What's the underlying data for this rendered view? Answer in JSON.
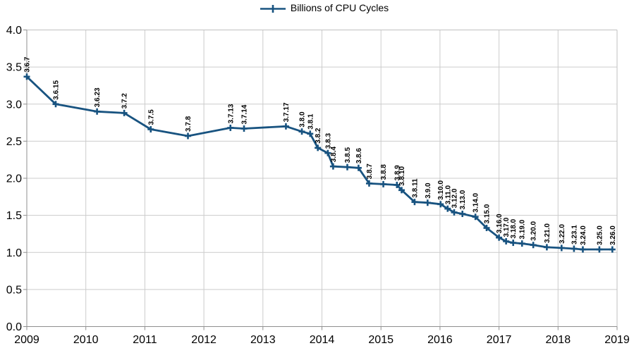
{
  "legend": {
    "label": "Billions of CPU Cycles"
  },
  "colors": {
    "line": "#185380",
    "marker": "#185380",
    "grid": "#cccccc",
    "border": "#c0c0c0",
    "axis": "#8f8f8f",
    "text": "#000000",
    "background": "#ffffff"
  },
  "chart_data": {
    "type": "line",
    "title": "",
    "xlabel": "",
    "ylabel": "",
    "legend_entries": [
      "Billions of CPU Cycles"
    ],
    "legend_position": "top-center",
    "grid": true,
    "marker_style": "plus",
    "xlim": [
      2009,
      2019
    ],
    "ylim": [
      0.0,
      4.0
    ],
    "x_ticks": [
      2009,
      2010,
      2011,
      2012,
      2013,
      2014,
      2015,
      2016,
      2017,
      2018,
      2019
    ],
    "x_tick_labels": [
      "2009",
      "2010",
      "2011",
      "2012",
      "2013",
      "2014",
      "2015",
      "2016",
      "2017",
      "2018",
      "2019"
    ],
    "y_ticks": [
      0.0,
      0.5,
      1.0,
      1.5,
      2.0,
      2.5,
      3.0,
      3.5,
      4.0
    ],
    "y_tick_labels": [
      "0.0",
      "0.5",
      "1.0",
      "1.5",
      "2.0",
      "2.5",
      "3.0",
      "3.5",
      "4.0"
    ],
    "series": [
      {
        "name": "Billions of CPU Cycles",
        "points": [
          {
            "label": "3.6.7",
            "x": 2009.0,
            "y": 3.37
          },
          {
            "label": "3.6.15",
            "x": 2009.49,
            "y": 3.0
          },
          {
            "label": "3.6.23",
            "x": 2010.19,
            "y": 2.9
          },
          {
            "label": "3.7.2",
            "x": 2010.65,
            "y": 2.88
          },
          {
            "label": "3.7.5",
            "x": 2011.1,
            "y": 2.66
          },
          {
            "label": "3.7.8",
            "x": 2011.73,
            "y": 2.57
          },
          {
            "label": "3.7.13",
            "x": 2012.45,
            "y": 2.68
          },
          {
            "label": "3.7.14",
            "x": 2012.68,
            "y": 2.67
          },
          {
            "label": "3.7.17",
            "x": 2013.39,
            "y": 2.7
          },
          {
            "label": "3.8.0",
            "x": 2013.66,
            "y": 2.63
          },
          {
            "label": "3.8.1",
            "x": 2013.8,
            "y": 2.6
          },
          {
            "label": "3.8.2",
            "x": 2013.93,
            "y": 2.41
          },
          {
            "label": "3.8.3",
            "x": 2014.1,
            "y": 2.34
          },
          {
            "label": "3.8.4",
            "x": 2014.19,
            "y": 2.16
          },
          {
            "label": "3.8.5",
            "x": 2014.43,
            "y": 2.15
          },
          {
            "label": "3.8.6",
            "x": 2014.62,
            "y": 2.14
          },
          {
            "label": "3.8.7",
            "x": 2014.8,
            "y": 1.93
          },
          {
            "label": "3.8.8",
            "x": 2015.04,
            "y": 1.92
          },
          {
            "label": "3.8.9",
            "x": 2015.27,
            "y": 1.91
          },
          {
            "label": "3.8.10",
            "x": 2015.35,
            "y": 1.84
          },
          {
            "label": "3.8.11",
            "x": 2015.57,
            "y": 1.68
          },
          {
            "label": "3.9.0",
            "x": 2015.79,
            "y": 1.67
          },
          {
            "label": "3.10.0",
            "x": 2016.01,
            "y": 1.65
          },
          {
            "label": "3.11.0",
            "x": 2016.13,
            "y": 1.59
          },
          {
            "label": "3.12.0",
            "x": 2016.24,
            "y": 1.54
          },
          {
            "label": "3.13.0",
            "x": 2016.38,
            "y": 1.52
          },
          {
            "label": "3.14.0",
            "x": 2016.6,
            "y": 1.48
          },
          {
            "label": "3.15.0",
            "x": 2016.79,
            "y": 1.33
          },
          {
            "label": "3.16.0",
            "x": 2017.0,
            "y": 1.2
          },
          {
            "label": "3.17.0",
            "x": 2017.12,
            "y": 1.15
          },
          {
            "label": "3.18.0",
            "x": 2017.24,
            "y": 1.13
          },
          {
            "label": "3.19.0",
            "x": 2017.39,
            "y": 1.12
          },
          {
            "label": "3.20.0",
            "x": 2017.58,
            "y": 1.1
          },
          {
            "label": "3.21.0",
            "x": 2017.81,
            "y": 1.07
          },
          {
            "label": "3.22.0",
            "x": 2018.06,
            "y": 1.06
          },
          {
            "label": "3.23.1",
            "x": 2018.27,
            "y": 1.05
          },
          {
            "label": "3.24.0",
            "x": 2018.42,
            "y": 1.04
          },
          {
            "label": "3.25.0",
            "x": 2018.7,
            "y": 1.04
          },
          {
            "label": "3.26.0",
            "x": 2018.92,
            "y": 1.04
          }
        ]
      }
    ]
  }
}
